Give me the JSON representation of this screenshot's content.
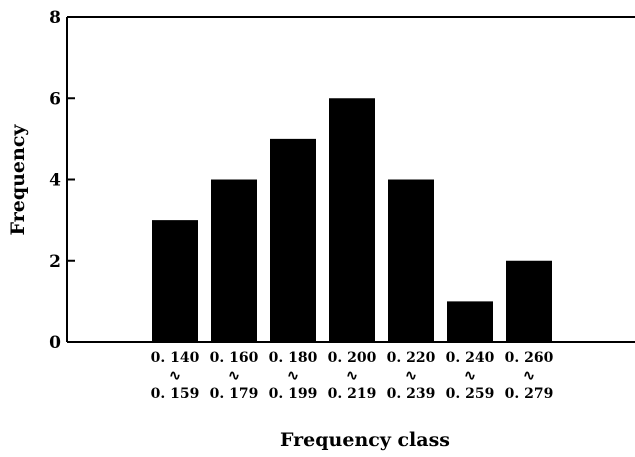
{
  "chart_data": {
    "type": "bar",
    "title": "",
    "xlabel": "Frequency class",
    "ylabel": "Frequency",
    "ylim": [
      0,
      8
    ],
    "yticks": [
      0,
      2,
      4,
      6,
      8
    ],
    "grid": false,
    "categories": [
      {
        "low": "0. 140",
        "sep": "∿",
        "high": "0. 159"
      },
      {
        "low": "0. 160",
        "sep": "∿",
        "high": "0. 179"
      },
      {
        "low": "0. 180",
        "sep": "∿",
        "high": "0. 199"
      },
      {
        "low": "0. 200",
        "sep": "∿",
        "high": "0. 219"
      },
      {
        "low": "0. 220",
        "sep": "∿",
        "high": "0. 239"
      },
      {
        "low": "0. 240",
        "sep": "∿",
        "high": "0. 259"
      },
      {
        "low": "0. 260",
        "sep": "∿",
        "high": "0. 279"
      }
    ],
    "values": [
      3,
      4,
      5,
      6,
      4,
      1,
      2
    ],
    "bar_color": "#000000"
  }
}
